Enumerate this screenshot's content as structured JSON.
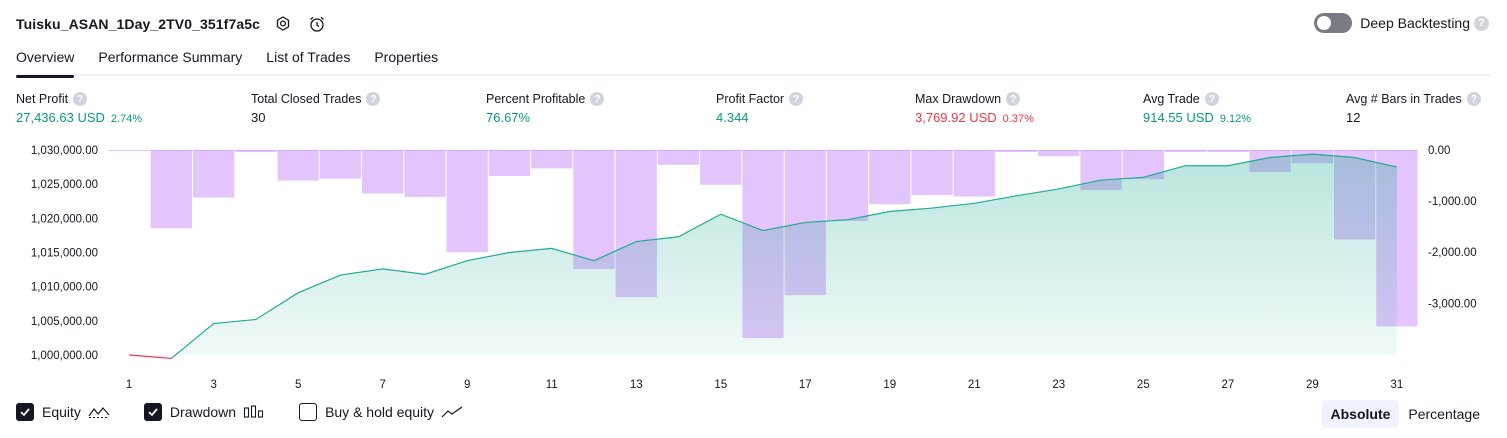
{
  "header": {
    "title": "Tuisku_ASAN_1Day_2TV0_351f7a5c",
    "deep_backtesting_label": "Deep Backtesting",
    "help_glyph": "?"
  },
  "tabs": [
    {
      "label": "Overview",
      "active": true
    },
    {
      "label": "Performance Summary",
      "active": false
    },
    {
      "label": "List of Trades",
      "active": false
    },
    {
      "label": "Properties",
      "active": false
    }
  ],
  "metrics": [
    {
      "label": "Net Profit",
      "value": "27,436.63 USD",
      "pct": "2.74%",
      "color": "green"
    },
    {
      "label": "Total Closed Trades",
      "value": "30",
      "pct": "",
      "color": "dark"
    },
    {
      "label": "Percent Profitable",
      "value": "76.67%",
      "pct": "",
      "color": "green"
    },
    {
      "label": "Profit Factor",
      "value": "4.344",
      "pct": "",
      "color": "green"
    },
    {
      "label": "Max Drawdown",
      "value": "3,769.92 USD",
      "pct": "0.37%",
      "color": "red"
    },
    {
      "label": "Avg Trade",
      "value": "914.55 USD",
      "pct": "9.12%",
      "color": "green"
    },
    {
      "label": "Avg # Bars in Trades",
      "value": "12",
      "pct": "",
      "color": "dark"
    }
  ],
  "colors": {
    "green": "#089981",
    "red": "#f23645",
    "drawdown_bar": "#ce93f9",
    "equity_line": "#22ab94",
    "text": "#131722"
  },
  "chart_data": {
    "type": "line",
    "x": [
      1,
      2,
      3,
      4,
      5,
      6,
      7,
      8,
      9,
      10,
      11,
      12,
      13,
      14,
      15,
      16,
      17,
      18,
      19,
      20,
      21,
      22,
      23,
      24,
      25,
      26,
      27,
      28,
      29,
      30,
      31
    ],
    "x_ticks": [
      1,
      3,
      5,
      7,
      9,
      11,
      13,
      15,
      17,
      19,
      21,
      23,
      25,
      27,
      29,
      31
    ],
    "equity": {
      "ylim": [
        1000000,
        1030000
      ],
      "y_ticks": [
        "1,030,000.00",
        "1,025,000.00",
        "1,020,000.00",
        "1,015,000.00",
        "1,010,000.00",
        "1,005,000.00",
        "1,000,000.00"
      ],
      "values": [
        1000000,
        999500,
        1004600,
        1005200,
        1009100,
        1011700,
        1012600,
        1011800,
        1013800,
        1015000,
        1015600,
        1013800,
        1016600,
        1017300,
        1020600,
        1018200,
        1019400,
        1019800,
        1021000,
        1021500,
        1022200,
        1023300,
        1024300,
        1025600,
        1026000,
        1027700,
        1027700,
        1028900,
        1029400,
        1028900,
        1027500
      ]
    },
    "drawdown": {
      "ylim": [
        -3600,
        0
      ],
      "y_ticks": [
        "0.00",
        "-1,000.00",
        "-2,000.00",
        "-3,000.00"
      ],
      "values": [
        0,
        -1530,
        -930,
        -40,
        -600,
        -560,
        -850,
        -920,
        -2000,
        -510,
        -360,
        -2330,
        -2880,
        -290,
        -680,
        -3680,
        -2840,
        -1390,
        -1060,
        -880,
        -910,
        -30,
        -120,
        -780,
        -570,
        -20,
        -20,
        -430,
        -260,
        -1750,
        -3450
      ]
    },
    "legend": [
      {
        "label": "Equity",
        "checked": true,
        "icon": "equity-icon"
      },
      {
        "label": "Drawdown",
        "checked": true,
        "icon": "drawdown-icon"
      },
      {
        "label": "Buy & hold equity",
        "checked": false,
        "icon": "buy-hold-icon"
      }
    ]
  },
  "modes": [
    {
      "label": "Absolute",
      "active": true
    },
    {
      "label": "Percentage",
      "active": false
    }
  ]
}
